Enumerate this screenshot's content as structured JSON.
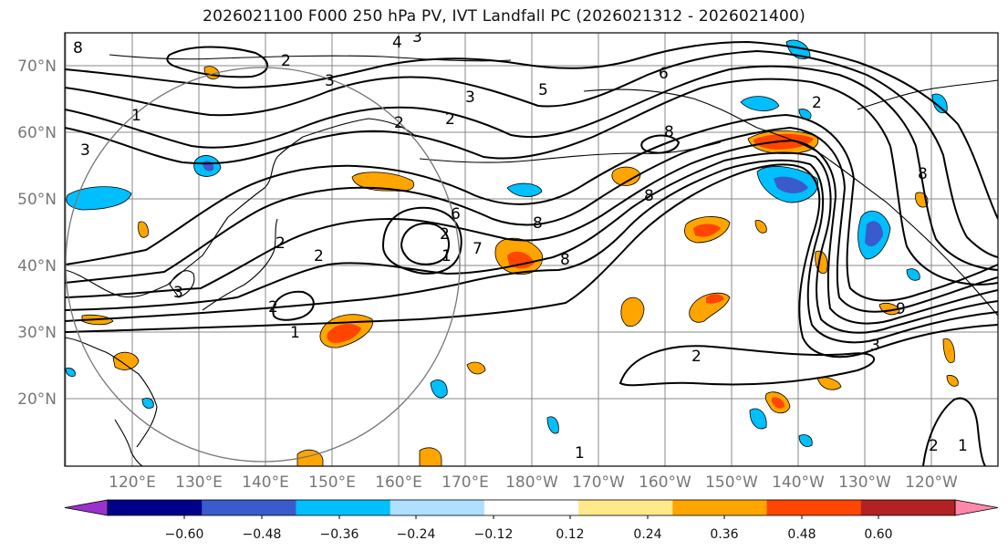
{
  "title": "2026021100 F000 250 hPa PV, IVT Landfall PC (2026021312 - 2026021400)",
  "colors": {
    "background": "#ffffff",
    "grid": "#888888",
    "contour": "#000000",
    "circle": "#777777"
  },
  "map": {
    "lat_labels": [
      "70°N",
      "60°N",
      "50°N",
      "40°N",
      "30°N",
      "20°N"
    ],
    "lon_labels": [
      "120°E",
      "130°E",
      "140°E",
      "150°E",
      "160°E",
      "170°E",
      "180°W",
      "170°W",
      "160°W",
      "150°W",
      "140°W",
      "130°W",
      "120°W"
    ]
  },
  "pv_contour_labels": [
    "4",
    "3",
    "2",
    "3",
    "3",
    "5",
    "6",
    "2",
    "1",
    "3",
    "2",
    "3",
    "2",
    "8",
    "8",
    "6",
    "2",
    "1",
    "7",
    "8",
    "2",
    "2",
    "1",
    "2",
    "8",
    "3",
    "8",
    "2",
    "1",
    "1",
    "2",
    "8",
    "9"
  ],
  "colorbar": {
    "tick_labels": [
      "−0.60",
      "−0.48",
      "−0.36",
      "−0.24",
      "−0.12",
      "0.12",
      "0.24",
      "0.36",
      "0.48",
      "0.60"
    ],
    "colors": [
      "#9932CC",
      "#00008B",
      "#3A5BCC",
      "#00BFFF",
      "#B0E0FF",
      "#FFFFFF",
      "#FFE98A",
      "#FFA500",
      "#FF4500",
      "#B22222",
      "#FF88AA"
    ]
  }
}
